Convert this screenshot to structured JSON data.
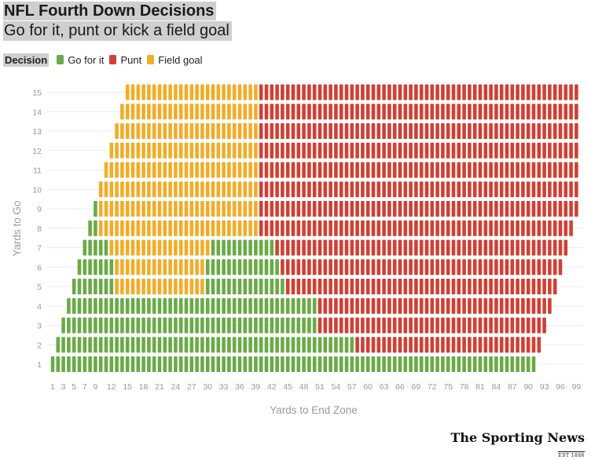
{
  "header": {
    "title": "NFL Fourth Down Decisions",
    "subtitle": "Go for it, punt or kick a field goal"
  },
  "legend": {
    "title": "Decision",
    "items": [
      {
        "label": "Go for it",
        "color": "#6aaa46"
      },
      {
        "label": "Punt",
        "color": "#cf4035"
      },
      {
        "label": "Field goal",
        "color": "#f0ad28"
      }
    ]
  },
  "logo": {
    "name": "The Sporting News",
    "tagline": "EST 1886"
  },
  "chart_data": {
    "type": "heatmap",
    "xlabel": "Yards to End Zone",
    "ylabel": "Yards to Go",
    "x_ticks": [
      1,
      3,
      5,
      7,
      9,
      12,
      15,
      18,
      21,
      24,
      27,
      30,
      33,
      36,
      39,
      42,
      45,
      48,
      51,
      54,
      57,
      60,
      63,
      66,
      69,
      72,
      75,
      78,
      81,
      84,
      87,
      90,
      93,
      96,
      99
    ],
    "y_ticks": [
      1,
      2,
      3,
      4,
      5,
      6,
      7,
      8,
      9,
      10,
      11,
      12,
      13,
      14,
      15
    ],
    "xlim": [
      1,
      99
    ],
    "ylim": [
      1,
      15
    ],
    "grid": true,
    "legend_position": "top-left",
    "colors": {
      "go": "#6aaa46",
      "punt": "#cf4035",
      "fg": "#f0ad28"
    },
    "rows": [
      {
        "yards_to_go": 1,
        "start": 1,
        "end": 91,
        "segments": [
          {
            "decision": "go",
            "from": 1,
            "to": 91
          }
        ]
      },
      {
        "yards_to_go": 2,
        "start": 2,
        "end": 92,
        "segments": [
          {
            "decision": "go",
            "from": 2,
            "to": 57
          },
          {
            "decision": "punt",
            "from": 58,
            "to": 92
          }
        ]
      },
      {
        "yards_to_go": 3,
        "start": 3,
        "end": 93,
        "segments": [
          {
            "decision": "go",
            "from": 3,
            "to": 50
          },
          {
            "decision": "punt",
            "from": 51,
            "to": 93
          }
        ]
      },
      {
        "yards_to_go": 4,
        "start": 4,
        "end": 94,
        "segments": [
          {
            "decision": "go",
            "from": 4,
            "to": 50
          },
          {
            "decision": "punt",
            "from": 51,
            "to": 94
          }
        ]
      },
      {
        "yards_to_go": 5,
        "start": 5,
        "end": 95,
        "segments": [
          {
            "decision": "go",
            "from": 5,
            "to": 12
          },
          {
            "decision": "fg",
            "from": 13,
            "to": 29
          },
          {
            "decision": "go",
            "from": 30,
            "to": 44
          },
          {
            "decision": "punt",
            "from": 45,
            "to": 95
          }
        ]
      },
      {
        "yards_to_go": 6,
        "start": 6,
        "end": 96,
        "segments": [
          {
            "decision": "go",
            "from": 6,
            "to": 12
          },
          {
            "decision": "fg",
            "from": 13,
            "to": 29
          },
          {
            "decision": "go",
            "from": 30,
            "to": 43
          },
          {
            "decision": "punt",
            "from": 44,
            "to": 96
          }
        ]
      },
      {
        "yards_to_go": 7,
        "start": 7,
        "end": 97,
        "segments": [
          {
            "decision": "go",
            "from": 7,
            "to": 11
          },
          {
            "decision": "fg",
            "from": 12,
            "to": 30
          },
          {
            "decision": "go",
            "from": 31,
            "to": 42
          },
          {
            "decision": "punt",
            "from": 43,
            "to": 97
          }
        ]
      },
      {
        "yards_to_go": 8,
        "start": 8,
        "end": 98,
        "segments": [
          {
            "decision": "go",
            "from": 8,
            "to": 9
          },
          {
            "decision": "fg",
            "from": 10,
            "to": 39
          },
          {
            "decision": "punt",
            "from": 40,
            "to": 98
          }
        ]
      },
      {
        "yards_to_go": 9,
        "start": 9,
        "end": 99,
        "segments": [
          {
            "decision": "go",
            "from": 9,
            "to": 9
          },
          {
            "decision": "fg",
            "from": 10,
            "to": 39
          },
          {
            "decision": "punt",
            "from": 40,
            "to": 99
          }
        ]
      },
      {
        "yards_to_go": 10,
        "start": 10,
        "end": 99,
        "segments": [
          {
            "decision": "fg",
            "from": 10,
            "to": 39
          },
          {
            "decision": "punt",
            "from": 40,
            "to": 99
          }
        ]
      },
      {
        "yards_to_go": 11,
        "start": 11,
        "end": 99,
        "segments": [
          {
            "decision": "fg",
            "from": 11,
            "to": 39
          },
          {
            "decision": "punt",
            "from": 40,
            "to": 99
          }
        ]
      },
      {
        "yards_to_go": 12,
        "start": 12,
        "end": 99,
        "segments": [
          {
            "decision": "fg",
            "from": 12,
            "to": 39
          },
          {
            "decision": "punt",
            "from": 40,
            "to": 99
          }
        ]
      },
      {
        "yards_to_go": 13,
        "start": 13,
        "end": 99,
        "segments": [
          {
            "decision": "fg",
            "from": 13,
            "to": 39
          },
          {
            "decision": "punt",
            "from": 40,
            "to": 99
          }
        ]
      },
      {
        "yards_to_go": 14,
        "start": 14,
        "end": 99,
        "segments": [
          {
            "decision": "fg",
            "from": 14,
            "to": 39
          },
          {
            "decision": "punt",
            "from": 40,
            "to": 99
          }
        ]
      },
      {
        "yards_to_go": 15,
        "start": 15,
        "end": 99,
        "segments": [
          {
            "decision": "fg",
            "from": 15,
            "to": 39
          },
          {
            "decision": "punt",
            "from": 40,
            "to": 99
          }
        ]
      }
    ]
  }
}
